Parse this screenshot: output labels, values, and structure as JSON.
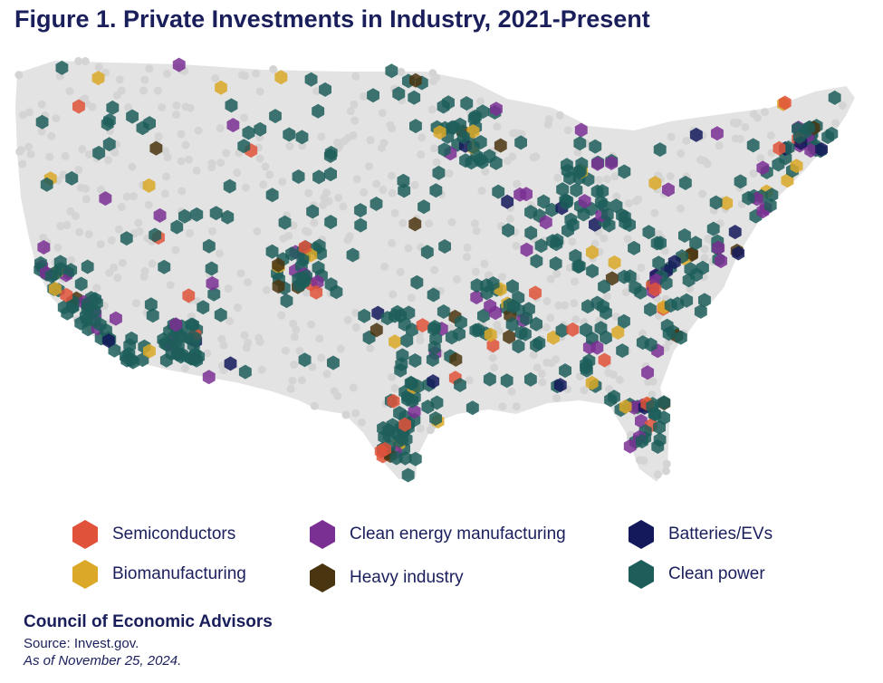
{
  "title": "Figure 1. Private Investments in Industry, 2021-Present",
  "legend": [
    {
      "label": "Semiconductors",
      "color": "#e0523a",
      "icon": "hexagon-icon"
    },
    {
      "label": "Biomanufacturing",
      "color": "#dba827",
      "icon": "hexagon-icon"
    },
    {
      "label": "Clean energy manufacturing",
      "color": "#7a2f93",
      "icon": "hexagon-icon"
    },
    {
      "label": "Heavy industry",
      "color": "#4a3511",
      "icon": "hexagon-icon"
    },
    {
      "label": "Batteries/EVs",
      "color": "#13195a",
      "icon": "hexagon-icon"
    },
    {
      "label": "Clean power",
      "color": "#1d5e5b",
      "icon": "hexagon-icon"
    }
  ],
  "footer": {
    "org": "Council of Economic Advisors",
    "source": "Source: Invest.gov.",
    "as_of": "As of November 25, 2024."
  },
  "map": {
    "region": "Contiguous United States",
    "base_color": "#e3e3e3",
    "background_dots_color": "#d4d4d4"
  }
}
